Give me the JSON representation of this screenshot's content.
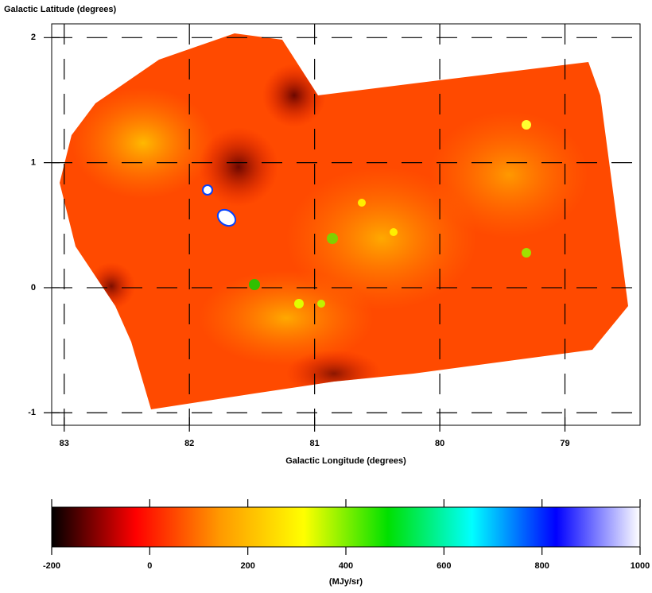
{
  "chart_data": {
    "type": "image",
    "xlabel": "Galactic Longitude (degrees)",
    "ylabel": "Galactic Latitude (degrees)",
    "xlim": [
      83.1,
      78.4
    ],
    "xticks": [
      83,
      82,
      81,
      80,
      79
    ],
    "ylim": [
      -1.1,
      2.11
    ],
    "yticks": [
      -1,
      0,
      1,
      2
    ],
    "grid": true,
    "colorbar": {
      "label": "(MJy/sr)",
      "lim": [
        -200,
        1000
      ],
      "ticks": [
        -200,
        0,
        200,
        400,
        600,
        800,
        1000
      ],
      "colors": [
        "#000000",
        "#ff0000",
        "#ff9900",
        "#ffff00",
        "#00e000",
        "#00ffff",
        "#0000ff",
        "#ffffff"
      ]
    }
  }
}
